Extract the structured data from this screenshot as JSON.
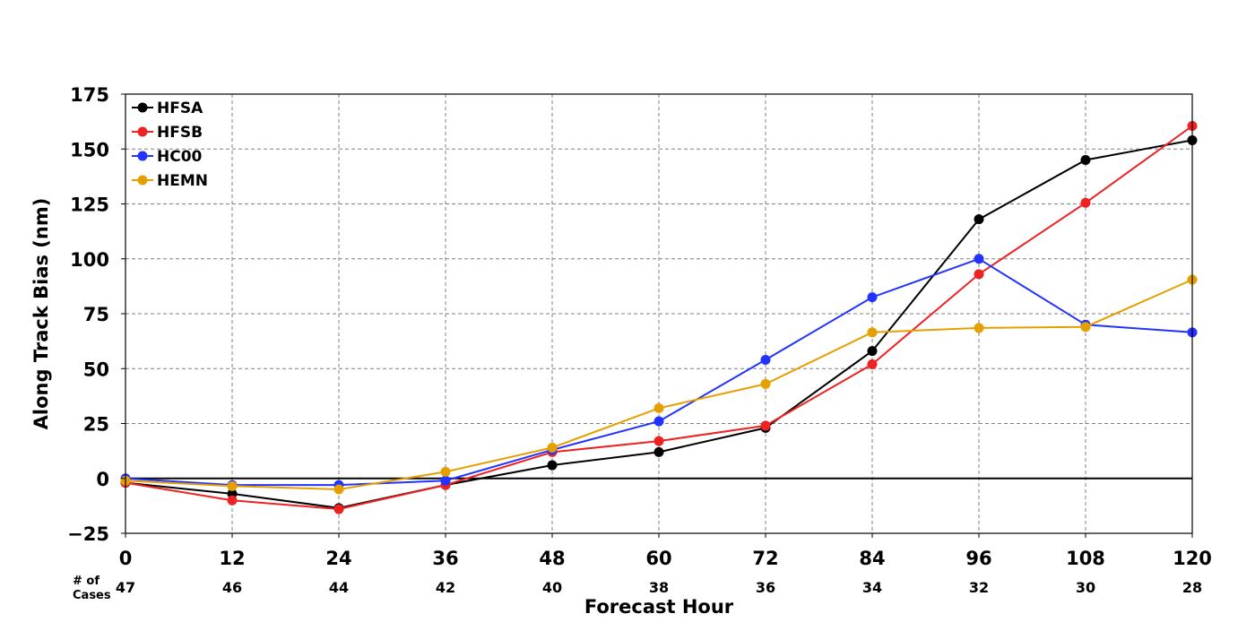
{
  "chart_data": {
    "type": "line",
    "xlabel": "Forecast Hour",
    "ylabel": "Along Track Bias (nm)",
    "x": [
      0,
      12,
      24,
      36,
      48,
      60,
      72,
      84,
      96,
      108,
      120
    ],
    "xticks": [
      "0",
      "12",
      "24",
      "36",
      "48",
      "60",
      "72",
      "84",
      "96",
      "108",
      "120"
    ],
    "ylim": [
      -25,
      175
    ],
    "yticks": [
      "−25",
      "0",
      "25",
      "50",
      "75",
      "100",
      "125",
      "150",
      "175"
    ],
    "ytick_values": [
      -25,
      0,
      25,
      50,
      75,
      100,
      125,
      150,
      175
    ],
    "grid": true,
    "legend_position": "top-left",
    "cases_label": "# of\nCases",
    "cases": [
      "47",
      "46",
      "44",
      "42",
      "40",
      "38",
      "36",
      "34",
      "32",
      "30",
      "28"
    ],
    "series": [
      {
        "name": "HFSA",
        "color": "#000000",
        "values": [
          -2,
          -7,
          -13.5,
          -3,
          6,
          12,
          23,
          58,
          118,
          145,
          154
        ]
      },
      {
        "name": "HFSB",
        "color": "#ee2222",
        "values": [
          -2,
          -10,
          -14,
          -3,
          12,
          17,
          24,
          52,
          93,
          125.5,
          160.5
        ]
      },
      {
        "name": "HC00",
        "color": "#2233ff",
        "values": [
          0,
          -3,
          -3,
          -1,
          13,
          26,
          54,
          82.5,
          100,
          70,
          66.5
        ]
      },
      {
        "name": "HEMN",
        "color": "#e69f00",
        "values": [
          -1,
          -3.5,
          -5,
          3,
          14,
          32,
          43,
          66.5,
          68.5,
          69,
          90.5
        ]
      }
    ]
  }
}
